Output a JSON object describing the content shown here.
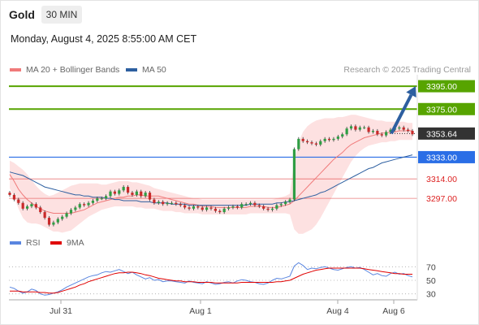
{
  "header": {
    "symbol": "Gold",
    "timeframe": "30 MIN",
    "datetime": "Monday, August 4, 2025 8:55:00 AM CET"
  },
  "legend": {
    "ma20": "MA 20 + Bollinger Bands",
    "ma50": "MA 50",
    "credit": "Research © 2025 Trading Central"
  },
  "rsi_legend": {
    "rsi": "RSI",
    "ma9": "9MA"
  },
  "colors": {
    "resistance": "#57a400",
    "support": "#2a6ee6",
    "pivot_red": "#d22",
    "ma20": "#f07a7a",
    "ma50": "#2d5fa0",
    "band": "#fde1e1",
    "arrow": "#2d5fa0",
    "current": "#333333"
  },
  "levels": [
    {
      "value": "3395.00",
      "kind": "resistance"
    },
    {
      "value": "3375.00",
      "kind": "resistance"
    },
    {
      "value": "3353.64",
      "kind": "current"
    },
    {
      "value": "3333.00",
      "kind": "support"
    },
    {
      "value": "3314.00",
      "kind": "minor"
    },
    {
      "value": "3297.00",
      "kind": "minor"
    }
  ],
  "rsi_axis": [
    "70",
    "50",
    "30"
  ],
  "x_axis": [
    "Jul 31",
    "Aug 1",
    "Aug 4",
    "Aug 6"
  ],
  "chart_data": {
    "type": "candlestick",
    "symbol": "Gold",
    "ylim": [
      3268,
      3405
    ],
    "current_price": 3353.64,
    "resistance": [
      3395.0,
      3375.0
    ],
    "support": [
      3333.0
    ],
    "minor_levels": [
      3314.0,
      3297.0
    ],
    "x_tick_labels": [
      "Jul 31",
      "Aug 1",
      "Aug 4",
      "Aug 6"
    ],
    "close": [
      3300,
      3296,
      3293,
      3288,
      3290,
      3292,
      3289,
      3285,
      3280,
      3274,
      3276,
      3279,
      3281,
      3284,
      3287,
      3289,
      3292,
      3291,
      3293,
      3295,
      3297,
      3297,
      3299,
      3303,
      3301,
      3304,
      3307,
      3302,
      3300,
      3303,
      3299,
      3302,
      3296,
      3293,
      3294,
      3292,
      3293,
      3293,
      3292,
      3291,
      3289,
      3288,
      3290,
      3289,
      3287,
      3289,
      3288,
      3286,
      3285,
      3288,
      3289,
      3290,
      3289,
      3292,
      3292,
      3293,
      3291,
      3290,
      3288,
      3287,
      3288,
      3291,
      3292,
      3294,
      3296,
      3340,
      3349,
      3347,
      3346,
      3345,
      3344,
      3347,
      3349,
      3348,
      3349,
      3351,
      3353,
      3358,
      3360,
      3357,
      3359,
      3359,
      3355,
      3356,
      3353,
      3352,
      3355,
      3357,
      3358,
      3359,
      3357,
      3356,
      3353
    ],
    "ma20": [
      3318,
      3312,
      3305,
      3300,
      3296,
      3293,
      3290,
      3288,
      3286,
      3285,
      3284,
      3284,
      3284,
      3284,
      3284,
      3285,
      3286,
      3287,
      3289,
      3291,
      3293,
      3294,
      3295,
      3296,
      3297,
      3298,
      3298,
      3299,
      3299,
      3300,
      3300,
      3299,
      3299,
      3299,
      3299,
      3298,
      3297,
      3296,
      3295,
      3294,
      3293,
      3292,
      3292,
      3291,
      3290,
      3290,
      3290,
      3289,
      3289,
      3289,
      3289,
      3289,
      3289,
      3289,
      3289,
      3290,
      3290,
      3290,
      3290,
      3289,
      3289,
      3289,
      3290,
      3291,
      3292,
      3295,
      3299,
      3303,
      3307,
      3311,
      3315,
      3319,
      3323,
      3327,
      3331,
      3334,
      3337,
      3341,
      3344,
      3346,
      3348,
      3350,
      3351,
      3352,
      3353,
      3354,
      3354,
      3355,
      3355,
      3356,
      3356,
      3356,
      3356
    ],
    "ma50": [
      3320,
      3319,
      3318,
      3317,
      3315,
      3313,
      3311,
      3309,
      3307,
      3306,
      3305,
      3304,
      3303,
      3302,
      3301,
      3300,
      3300,
      3299,
      3299,
      3298,
      3298,
      3298,
      3297,
      3297,
      3296,
      3296,
      3295,
      3295,
      3295,
      3295,
      3294,
      3294,
      3294,
      3293,
      3293,
      3293,
      3293,
      3292,
      3292,
      3292,
      3292,
      3291,
      3291,
      3291,
      3291,
      3291,
      3291,
      3291,
      3291,
      3291,
      3291,
      3291,
      3291,
      3291,
      3291,
      3292,
      3292,
      3292,
      3292,
      3292,
      3292,
      3293,
      3293,
      3294,
      3294,
      3295,
      3296,
      3297,
      3298,
      3299,
      3300,
      3302,
      3303,
      3305,
      3307,
      3309,
      3311,
      3313,
      3315,
      3317,
      3319,
      3321,
      3323,
      3324,
      3326,
      3328,
      3329,
      3330,
      3331,
      3332,
      3333,
      3334,
      3335
    ],
    "bollinger_upper": [
      3330,
      3328,
      3325,
      3322,
      3318,
      3313,
      3308,
      3304,
      3301,
      3299,
      3300,
      3302,
      3304,
      3306,
      3308,
      3309,
      3310,
      3310,
      3310,
      3310,
      3310,
      3309,
      3309,
      3310,
      3311,
      3312,
      3312,
      3312,
      3311,
      3311,
      3310,
      3309,
      3308,
      3306,
      3305,
      3304,
      3303,
      3302,
      3301,
      3300,
      3299,
      3298,
      3297,
      3297,
      3296,
      3296,
      3296,
      3296,
      3296,
      3296,
      3296,
      3296,
      3296,
      3296,
      3296,
      3296,
      3296,
      3296,
      3296,
      3296,
      3296,
      3297,
      3298,
      3299,
      3301,
      3330,
      3346,
      3355,
      3360,
      3363,
      3365,
      3366,
      3367,
      3367,
      3367,
      3368,
      3368,
      3369,
      3370,
      3370,
      3369,
      3368,
      3367,
      3366,
      3365,
      3365,
      3364,
      3364,
      3364,
      3364,
      3364,
      3363,
      3363
    ],
    "bollinger_lower": [
      3306,
      3298,
      3288,
      3280,
      3276,
      3275,
      3275,
      3274,
      3272,
      3270,
      3268,
      3268,
      3267,
      3268,
      3269,
      3272,
      3275,
      3278,
      3281,
      3283,
      3285,
      3287,
      3288,
      3289,
      3290,
      3290,
      3290,
      3290,
      3290,
      3289,
      3289,
      3288,
      3288,
      3288,
      3287,
      3286,
      3286,
      3286,
      3285,
      3285,
      3284,
      3284,
      3284,
      3284,
      3283,
      3283,
      3283,
      3283,
      3283,
      3283,
      3283,
      3283,
      3283,
      3283,
      3283,
      3284,
      3284,
      3284,
      3284,
      3284,
      3284,
      3284,
      3284,
      3284,
      3283,
      3270,
      3266,
      3266,
      3268,
      3270,
      3274,
      3280,
      3287,
      3294,
      3301,
      3308,
      3315,
      3322,
      3329,
      3334,
      3338,
      3341,
      3343,
      3344,
      3345,
      3346,
      3346,
      3347,
      3347,
      3348,
      3348,
      3348,
      3348
    ],
    "arrow": {
      "from": 3353.64,
      "to": 3395.0
    },
    "rsi": {
      "ylim": [
        20,
        80
      ],
      "ticks": [
        70,
        50,
        30
      ],
      "rsi": [
        40,
        38,
        34,
        31,
        33,
        37,
        35,
        30,
        28,
        29,
        31,
        33,
        36,
        40,
        43,
        46,
        49,
        52,
        55,
        57,
        58,
        61,
        63,
        62,
        64,
        66,
        63,
        60,
        62,
        58,
        55,
        52,
        54,
        50,
        51,
        48,
        49,
        49,
        48,
        47,
        46,
        49,
        47,
        46,
        45,
        48,
        46,
        44,
        45,
        47,
        48,
        46,
        49,
        51,
        50,
        48,
        47,
        45,
        44,
        46,
        50,
        53,
        52,
        54,
        56,
        71,
        76,
        72,
        66,
        68,
        67,
        69,
        70,
        68,
        66,
        65,
        67,
        69,
        70,
        68,
        69,
        66,
        62,
        58,
        60,
        57,
        56,
        60,
        62,
        59,
        60,
        57,
        55
      ],
      "ma9": [
        34,
        34,
        34,
        33,
        33,
        33,
        33,
        32,
        32,
        31,
        31,
        32,
        34,
        36,
        38,
        40,
        43,
        45,
        48,
        50,
        52,
        54,
        56,
        58,
        60,
        61,
        61,
        62,
        62,
        61,
        60,
        58,
        57,
        55,
        53,
        52,
        51,
        50,
        49,
        49,
        48,
        48,
        48,
        47,
        47,
        47,
        47,
        46,
        46,
        46,
        46,
        46,
        46,
        47,
        47,
        47,
        47,
        47,
        47,
        47,
        47,
        48,
        48,
        49,
        50,
        53,
        56,
        59,
        61,
        63,
        65,
        66,
        67,
        68,
        68,
        68,
        68,
        68,
        68,
        68,
        68,
        67,
        66,
        65,
        64,
        63,
        62,
        61,
        60,
        60,
        59,
        59,
        59
      ]
    }
  }
}
